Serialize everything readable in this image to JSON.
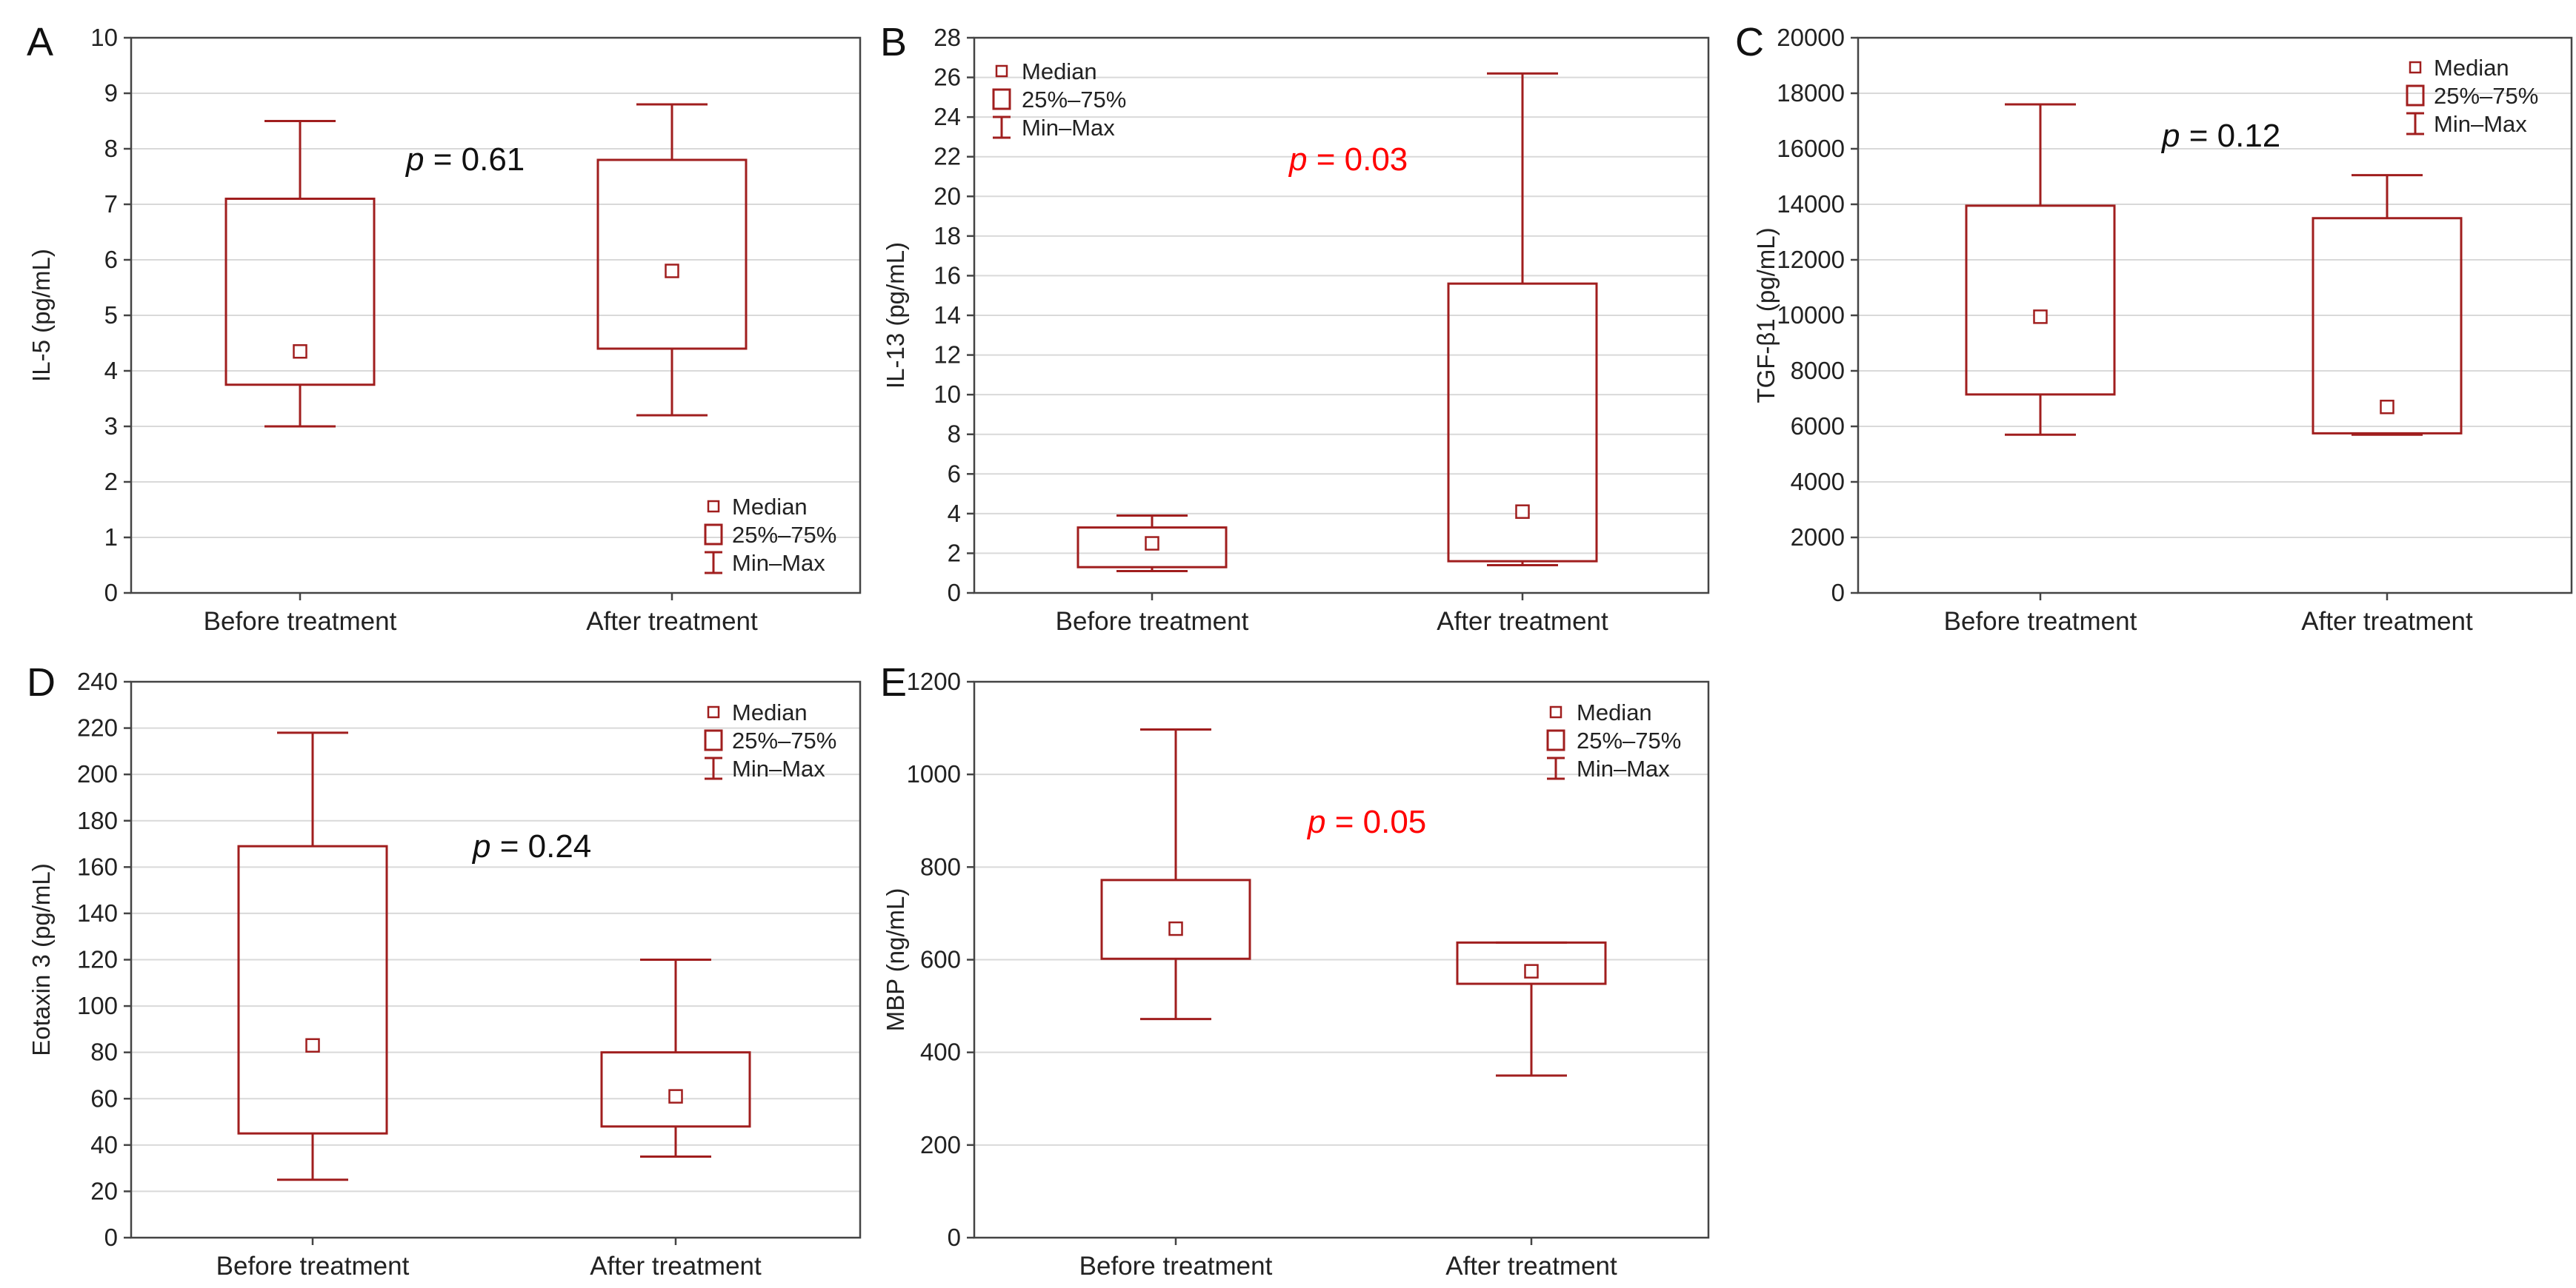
{
  "figure": {
    "legend": {
      "median": "Median",
      "box": "25%–75%",
      "whisker": "Min–Max"
    },
    "colors": {
      "box": "#a01e1e",
      "axis": "#444444",
      "grid": "#d9d9d9",
      "p_normal": "#111111",
      "p_significant": "#ff0000"
    }
  },
  "chart_data": [
    {
      "panel": "A",
      "type": "boxplot",
      "ylabel": "IL-5 (pg/mL)",
      "ylim": [
        0,
        10
      ],
      "yticks": [
        0,
        1,
        2,
        3,
        4,
        5,
        6,
        7,
        8,
        9,
        10
      ],
      "categories": [
        "Before treatment",
        "After treatment"
      ],
      "boxes": [
        {
          "min": 3.0,
          "q1": 3.75,
          "median": 4.35,
          "q3": 7.1,
          "max": 8.5
        },
        {
          "min": 3.2,
          "q1": 4.4,
          "median": 5.8,
          "q3": 7.8,
          "max": 8.8
        }
      ],
      "p_prefix": "p",
      "p_value": "= 0.61",
      "p_significant": false,
      "legend_position": "bottom-right"
    },
    {
      "panel": "B",
      "type": "boxplot",
      "ylabel": "IL-13 (pg/mL)",
      "ylim": [
        0,
        28
      ],
      "yticks": [
        0,
        2,
        4,
        6,
        8,
        10,
        12,
        14,
        16,
        18,
        20,
        22,
        24,
        26,
        28
      ],
      "categories": [
        "Before treatment",
        "After treatment"
      ],
      "boxes": [
        {
          "min": 1.1,
          "q1": 1.3,
          "median": 2.5,
          "q3": 3.3,
          "max": 3.9
        },
        {
          "min": 1.4,
          "q1": 1.6,
          "median": 4.1,
          "q3": 15.6,
          "max": 26.2
        }
      ],
      "p_prefix": "p",
      "p_value": "= 0.03",
      "p_significant": true,
      "legend_position": "top-left"
    },
    {
      "panel": "C",
      "type": "boxplot",
      "ylabel": "TGF-β1 (pg/mL)",
      "ylim": [
        0,
        20000
      ],
      "yticks": [
        0,
        2000,
        4000,
        6000,
        8000,
        10000,
        12000,
        14000,
        16000,
        18000,
        20000
      ],
      "categories": [
        "Before treatment",
        "After treatment"
      ],
      "boxes": [
        {
          "min": 5700,
          "q1": 7150,
          "median": 9950,
          "q3": 13950,
          "max": 17600
        },
        {
          "min": 5700,
          "q1": 5750,
          "median": 6700,
          "q3": 13500,
          "max": 15050
        }
      ],
      "p_prefix": "p",
      "p_value": "= 0.12",
      "p_significant": false,
      "legend_position": "top-right"
    },
    {
      "panel": "D",
      "type": "boxplot",
      "ylabel": "Eotaxin 3 (pg/mL)",
      "ylim": [
        0,
        240
      ],
      "yticks": [
        0,
        20,
        40,
        60,
        80,
        100,
        120,
        140,
        160,
        180,
        200,
        220,
        240
      ],
      "categories": [
        "Before treatment",
        "After treatment"
      ],
      "boxes": [
        {
          "min": 25,
          "q1": 45,
          "median": 83,
          "q3": 169,
          "max": 218
        },
        {
          "min": 35,
          "q1": 48,
          "median": 61,
          "q3": 80,
          "max": 120
        }
      ],
      "p_prefix": "p",
      "p_value": "= 0.24",
      "p_significant": false,
      "legend_position": "top-right"
    },
    {
      "panel": "E",
      "type": "boxplot",
      "ylabel": "MBP (ng/mL)",
      "ylim": [
        0,
        1200
      ],
      "yticks": [
        0,
        200,
        400,
        600,
        800,
        1000,
        1200
      ],
      "categories": [
        "Before treatment",
        "After treatment"
      ],
      "boxes": [
        {
          "min": 472,
          "q1": 602,
          "median": 667,
          "q3": 772,
          "max": 1097
        },
        {
          "min": 350,
          "q1": 548,
          "median": 575,
          "q3": 637,
          "max": 637
        }
      ],
      "p_prefix": "p",
      "p_value": "= 0.05",
      "p_significant": true,
      "legend_position": "top-right"
    }
  ]
}
